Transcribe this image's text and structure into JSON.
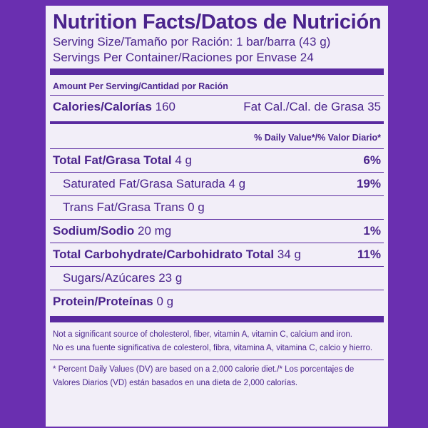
{
  "title": "Nutrition Facts/Datos de Nutrición",
  "serving_size": "Serving Size/Tamaño por Ración:  1 bar/barra (43 g)",
  "servings_per_container": "Servings Per Container/Raciones por Envase 24",
  "amount_per_serving": "Amount Per Serving/Cantidad por Ración",
  "calories": {
    "label": "Calories/Calorías",
    "value": "160",
    "fat_cal": "Fat Cal./Cal. de Grasa 35"
  },
  "daily_value_header": "% Daily Value*/% Valor Diario*",
  "nutrients": [
    {
      "label": "Total Fat/Grasa Total",
      "amount": "4 g",
      "dv": "6%"
    },
    {
      "label": "Saturated Fat/Grasa Saturada",
      "amount": "4 g",
      "dv": "19%"
    },
    {
      "label": "Trans Fat/Grasa Trans",
      "amount": "0 g",
      "dv": ""
    },
    {
      "label": "Sodium/Sodio",
      "amount": "20 mg",
      "dv": "1%"
    },
    {
      "label": "Total Carbohydrate/Carbohidrato Total",
      "amount": "34 g",
      "dv": "11%"
    },
    {
      "label": "Sugars/Azúcares",
      "amount": "23 g",
      "dv": ""
    },
    {
      "label": "Protein/Proteínas",
      "amount": "0 g",
      "dv": ""
    }
  ],
  "not_significant_en": "Not a significant source of cholesterol, fiber, vitamin A, vitamin C, calcium and iron.",
  "not_significant_es": "No es una fuente significativa de colesterol, fibra, vitamina A, vitamina C, calcio y hierro.",
  "footnote_line1": "* Percent Daily Values (DV) are based on a 2,000 calorie diet./* Los porcentajes de",
  "footnote_line2": "Valores Diarios (VD) están basados en una dieta de 2,000 calorías.",
  "colors": {
    "background": "#6a2fb0",
    "panel": "#f2eef8",
    "text": "#4a238c"
  }
}
